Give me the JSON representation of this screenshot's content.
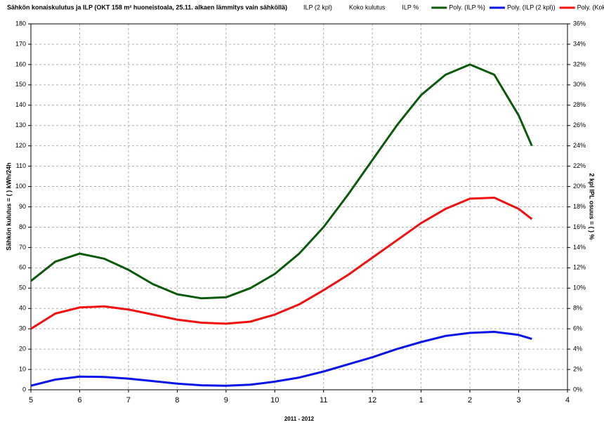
{
  "chart_data": {
    "type": "line",
    "title": "Sähkön konaiskulutus ja ILP (OKT 158 m² huoneistoala, 25.11. alkaen lämmitys vain sähköllä)",
    "legend_extra": [
      "ILP (2 kpl)",
      "Koko kulutus",
      "ILP %"
    ],
    "xlabel": "2011 - 2012",
    "ylabel": "Sähkön kulutus = ( ) kWh/24h",
    "y2label": "2 kpl IPL osuus = ( ) %",
    "x": [
      0,
      0.5,
      1,
      1.5,
      2,
      2.5,
      3,
      3.5,
      4,
      4.5,
      5,
      5.5,
      6,
      6.5,
      7,
      7.5,
      8,
      8.5,
      9,
      9.5,
      10,
      10.27
    ],
    "xlim": [
      0,
      11
    ],
    "xticks": [
      {
        "value": 0,
        "label": "5"
      },
      {
        "value": 1,
        "label": "6"
      },
      {
        "value": 2,
        "label": "7"
      },
      {
        "value": 3,
        "label": "8"
      },
      {
        "value": 4,
        "label": "9"
      },
      {
        "value": 5,
        "label": "10"
      },
      {
        "value": 6,
        "label": "11"
      },
      {
        "value": 7,
        "label": "12"
      },
      {
        "value": 8,
        "label": "1"
      },
      {
        "value": 9,
        "label": "2"
      },
      {
        "value": 10,
        "label": "3"
      },
      {
        "value": 11,
        "label": "4"
      }
    ],
    "ylim": [
      0,
      180
    ],
    "yticks": [
      0,
      10,
      20,
      30,
      40,
      50,
      60,
      70,
      80,
      90,
      100,
      110,
      120,
      130,
      140,
      150,
      160,
      170,
      180
    ],
    "y2lim": [
      0,
      36
    ],
    "y2ticks": [
      {
        "value": 0,
        "label": "0%"
      },
      {
        "value": 2,
        "label": "2%"
      },
      {
        "value": 4,
        "label": "4%"
      },
      {
        "value": 6,
        "label": "6%"
      },
      {
        "value": 8,
        "label": "8%"
      },
      {
        "value": 10,
        "label": "10%"
      },
      {
        "value": 12,
        "label": "12%"
      },
      {
        "value": 14,
        "label": "14%"
      },
      {
        "value": 16,
        "label": "16%"
      },
      {
        "value": 18,
        "label": "18%"
      },
      {
        "value": 20,
        "label": "20%"
      },
      {
        "value": 22,
        "label": "22%"
      },
      {
        "value": 24,
        "label": "24%"
      },
      {
        "value": 26,
        "label": "26%"
      },
      {
        "value": 28,
        "label": "28%"
      },
      {
        "value": 30,
        "label": "30%"
      },
      {
        "value": 32,
        "label": "32%"
      },
      {
        "value": 34,
        "label": "34%"
      },
      {
        "value": 36,
        "label": "36%"
      }
    ],
    "grid": true,
    "series": [
      {
        "name": "Poly. (ILP %)",
        "color": "#0b5a0b",
        "axis": "y2",
        "values": [
          10.7,
          12.6,
          13.4,
          12.9,
          11.8,
          10.4,
          9.4,
          9.0,
          9.1,
          10.0,
          11.4,
          13.4,
          16.0,
          19.2,
          22.6,
          26.0,
          29.0,
          31.0,
          32.0,
          31.0,
          27.0,
          24.0
        ]
      },
      {
        "name": "Poly. (ILP (2 kpl))",
        "color": "#0a14e6",
        "values": [
          2,
          5,
          6.5,
          6.3,
          5.5,
          4.3,
          3,
          2.2,
          2,
          2.5,
          4,
          6,
          9,
          12.5,
          16,
          20,
          23.5,
          26.5,
          28,
          28.5,
          27,
          25
        ]
      },
      {
        "name": "Poly. (Koko kulutus)",
        "color": "#f01010",
        "values": [
          30,
          37.5,
          40.5,
          41,
          39.5,
          37,
          34.5,
          33,
          32.5,
          33.5,
          37,
          42,
          49,
          56.5,
          65,
          73.5,
          82,
          89,
          94,
          94.5,
          89,
          84
        ]
      }
    ]
  }
}
